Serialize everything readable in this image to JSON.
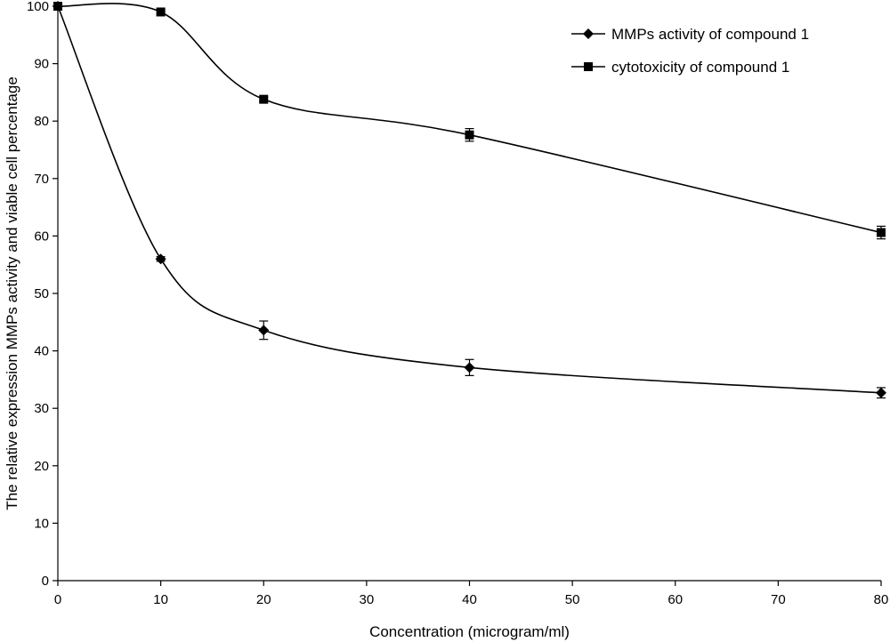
{
  "chart_data": {
    "type": "line",
    "title": "",
    "xlabel": "Concentration (microgram/ml)",
    "ylabel": "The relative expression MMPs activity and viable cell percentage",
    "xlim": [
      0,
      80
    ],
    "ylim": [
      0,
      100
    ],
    "x_ticks": [
      0,
      10,
      20,
      30,
      40,
      50,
      60,
      70,
      80
    ],
    "y_ticks": [
      0,
      10,
      20,
      30,
      40,
      50,
      60,
      70,
      80,
      90,
      100
    ],
    "x_tick_labels": [
      "0",
      "10",
      "20",
      "30",
      "40",
      "50",
      "60",
      "70",
      "80"
    ],
    "y_tick_labels": [
      "0",
      "10",
      "20",
      "30",
      "40",
      "50",
      "60",
      "70",
      "80",
      "90",
      "100"
    ],
    "grid": false,
    "legend_position": "top-right",
    "smooth": true,
    "series": [
      {
        "name": "MMPs activity of compound 1",
        "marker": "diamond",
        "color": "#000000",
        "x": [
          0,
          10,
          20,
          40,
          80
        ],
        "y": [
          100,
          56,
          43.6,
          37.1,
          32.7
        ],
        "error": [
          0,
          0.4,
          1.6,
          1.4,
          0.9
        ]
      },
      {
        "name": "cytotoxicity of compound 1",
        "marker": "square",
        "color": "#000000",
        "x": [
          0,
          10,
          20,
          40,
          80
        ],
        "y": [
          100,
          99,
          83.8,
          77.6,
          60.6
        ],
        "error": [
          0,
          0.4,
          0.4,
          1.1,
          1.1
        ]
      }
    ]
  }
}
